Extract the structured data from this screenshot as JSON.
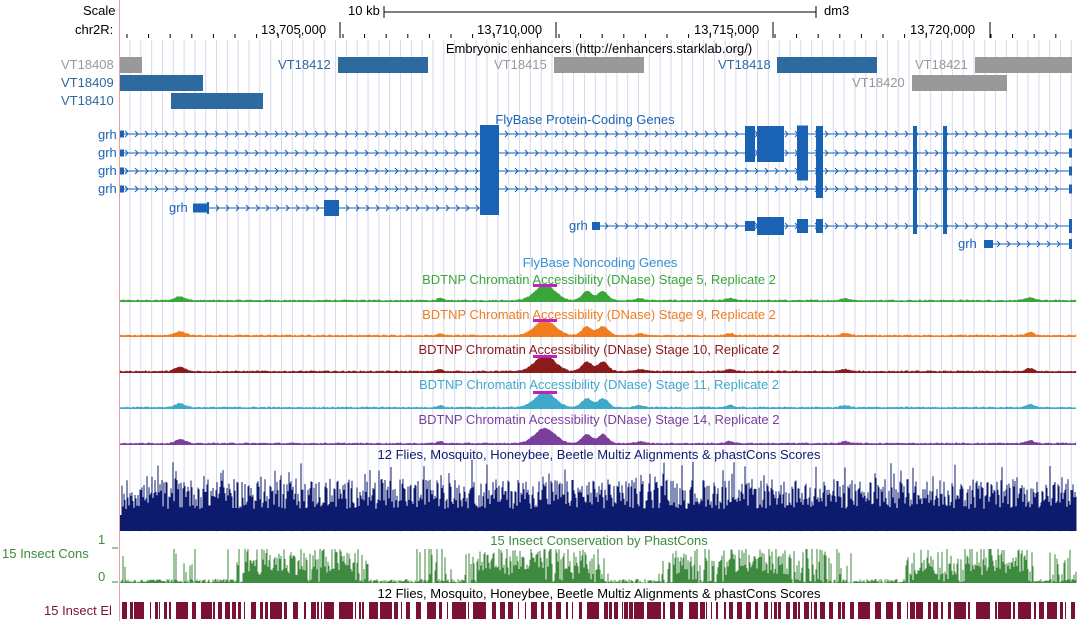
{
  "ruler": {
    "scale_label": "Scale",
    "chrom_label": "chr2R:",
    "scale_bar_label": "10 kb",
    "assembly": "dm3",
    "positions": [
      "13,705,000",
      "13,710,000",
      "13,715,000",
      "13,720,000"
    ]
  },
  "tracks": {
    "enhancers": {
      "title": "Embryonic enhancers (http://enhancers.starklab.org/)",
      "items": [
        {
          "name": "VT18408",
          "state": "gray"
        },
        {
          "name": "VT18409",
          "state": "blue"
        },
        {
          "name": "VT18410",
          "state": "blue"
        },
        {
          "name": "VT18412",
          "state": "blue"
        },
        {
          "name": "VT18415",
          "state": "gray"
        },
        {
          "name": "VT18418",
          "state": "blue"
        },
        {
          "name": "VT18420",
          "state": "gray"
        },
        {
          "name": "VT18421",
          "state": "gray"
        }
      ]
    },
    "protein_genes": {
      "title": "FlyBase Protein-Coding Genes",
      "gene_labels": [
        "grh",
        "grh",
        "grh",
        "grh",
        "grh",
        "grh",
        "grh"
      ]
    },
    "noncoding": {
      "title": "FlyBase Noncoding Genes"
    },
    "dnase": [
      {
        "title": "BDTNP Chromatin Accessibility (DNase) Stage 5, Replicate 2",
        "color": "#3aa63a"
      },
      {
        "title": "BDTNP Chromatin Accessibility (DNase) Stage 9, Replicate 2",
        "color": "#f07d1e"
      },
      {
        "title": "BDTNP Chromatin Accessibility (DNase) Stage 10, Replicate 2",
        "color": "#8b1a1a"
      },
      {
        "title": "BDTNP Chromatin Accessibility (DNase) Stage 11, Replicate 2",
        "color": "#3fa9c9"
      },
      {
        "title": "BDTNP Chromatin Accessibility (DNase) Stage 14, Replicate 2",
        "color": "#7a3f9d"
      }
    ],
    "multiz": {
      "title": "12 Flies, Mosquito, Honeybee, Beetle Multiz Alignments & phastCons Scores",
      "color": "#0d1b6e"
    },
    "phastcons": {
      "title": "15 Insect Conservation by PhastCons",
      "side_label": "15 Insect Cons",
      "axis_max": "1",
      "axis_min": "0",
      "color": "#3e8a3e"
    },
    "elements": {
      "title": "12 Flies, Mosquito, Honeybee, Beetle Multiz Alignments & phastCons Scores",
      "side_label": "15 Insect El",
      "color": "#7a1233"
    }
  },
  "colors": {
    "gene_blue": "#1a62b3",
    "enh_blue": "#2d6aa0",
    "enh_gray": "#999999",
    "grid": "#d7d7f0",
    "left_border": "#f0a0a0",
    "peak_highlight": "#c020c0"
  }
}
